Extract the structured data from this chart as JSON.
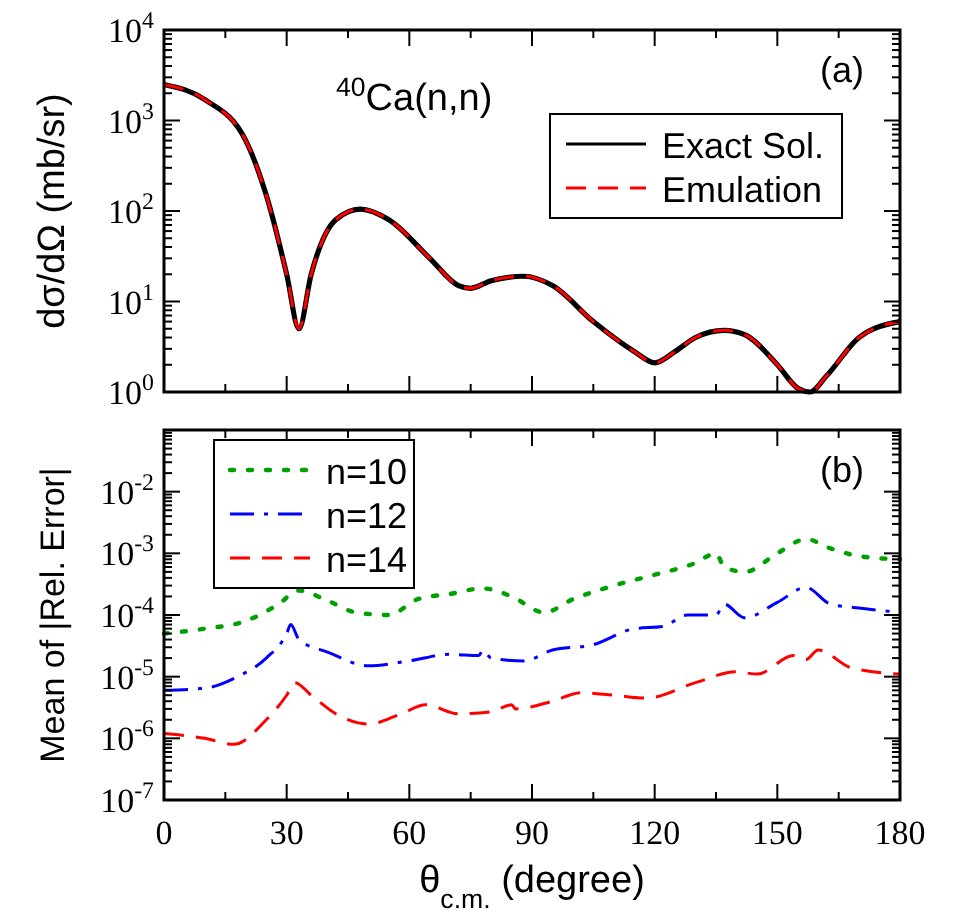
{
  "chart_data": [
    {
      "type": "line",
      "ylabel": "dσ/dΩ (mb/sr)",
      "log": "y",
      "xlim": [
        0,
        180
      ],
      "xticks": [
        0,
        30,
        60,
        90,
        120,
        150,
        180
      ],
      "ylim": [
        1,
        10000
      ],
      "yticks": [
        {
          "value": 1,
          "label": "10$^{0}$"
        },
        {
          "value": 10,
          "label": "10$^{1}$"
        },
        {
          "value": 100,
          "label": "10$^{2}$"
        },
        {
          "value": 1000,
          "label": "10$^{3}$"
        },
        {
          "value": 10000,
          "label": "10$^{4}$"
        }
      ],
      "tick_labels": "y",
      "grid": false,
      "legend": "top right",
      "annotations": [
        "$^{40}$Ca(n,n)",
        "(a)"
      ],
      "x": [
        0,
        10,
        20,
        25,
        30,
        33,
        36,
        42,
        48,
        55,
        65,
        72,
        75,
        80,
        88,
        95,
        105,
        115,
        120,
        125,
        130,
        137,
        142,
        150,
        155,
        158,
        162,
        170,
        180
      ],
      "series": [
        {
          "name": "Exact Sol.",
          "color": "#000000",
          "line_style": "solid",
          "values": [
            2500,
            1700,
            600,
            150,
            20,
            5,
            20,
            80,
            105,
            80,
            30,
            15,
            14,
            17,
            19,
            15,
            6,
            2.8,
            2.1,
            2.8,
            4,
            4.8,
            4.3,
            2,
            1.1,
            1,
            1.5,
            4,
            6
          ]
        },
        {
          "name": "Emulation",
          "color": "#ff0000",
          "line_style": "dashed",
          "values": [
            2500,
            1700,
            600,
            150,
            20,
            5,
            20,
            80,
            105,
            80,
            30,
            15,
            14,
            17,
            19,
            15,
            6,
            2.8,
            2.1,
            2.8,
            4,
            4.8,
            4.3,
            2,
            1.1,
            1,
            1.5,
            4,
            6
          ]
        }
      ]
    },
    {
      "type": "line",
      "ylabel": "Mean of |Rel. Error|",
      "xlabel": "θ$_{c.m.}$ (degree)",
      "log": "y",
      "xlim": [
        0,
        180
      ],
      "xticks": [
        0,
        30,
        60,
        90,
        120,
        150,
        180
      ],
      "ylim": [
        1e-07,
        0.1
      ],
      "yticks": [
        {
          "value": 1e-07,
          "label": "10$^{-7}$"
        },
        {
          "value": 1e-06,
          "label": "10$^{-6}$"
        },
        {
          "value": 1e-05,
          "label": "10$^{-5}$"
        },
        {
          "value": 0.0001,
          "label": "10$^{-4}$"
        },
        {
          "value": 0.001,
          "label": "10$^{-3}$"
        },
        {
          "value": 0.01,
          "label": "10$^{-2}$"
        },
        {
          "value": 0.1,
          "label": null
        }
      ],
      "grid": false,
      "legend": "top left",
      "annotations": [
        "(b)"
      ],
      "series": [
        {
          "name": "n=10",
          "color": "#00a000",
          "line_style": "dotted",
          "x": [
            0,
            10,
            20,
            28,
            33,
            40,
            47,
            55,
            62,
            70,
            78,
            85,
            93,
            100,
            110,
            120,
            130,
            135,
            137,
            142,
            150,
            157,
            163,
            170,
            180
          ],
          "values": [
            5e-05,
            6e-05,
            8e-05,
            0.00015,
            0.00025,
            0.00017,
            0.00011,
            0.0001,
            0.00018,
            0.00022,
            0.00027,
            0.0002,
            0.00011,
            0.00018,
            0.0003,
            0.00045,
            0.0007,
            0.001,
            0.0006,
            0.0005,
            0.001,
            0.0017,
            0.0012,
            0.0009,
            0.0008
          ]
        },
        {
          "name": "n=12",
          "color": "#0000ff",
          "line_style": "dashdot",
          "x": [
            0,
            10,
            18,
            25,
            30,
            31,
            33,
            40,
            50,
            60,
            70,
            77,
            78,
            80,
            88,
            95,
            105,
            115,
            122,
            128,
            135,
            137,
            142,
            150,
            157,
            163,
            170,
            180
          ],
          "values": [
            6e-06,
            6.5e-06,
            1e-05,
            2e-05,
            5e-05,
            7e-05,
            4e-05,
            2.5e-05,
            1.5e-05,
            1.8e-05,
            2.3e-05,
            2.2e-05,
            2.7e-05,
            2e-05,
            1.8e-05,
            2.7e-05,
            3.3e-05,
            6e-05,
            6.5e-05,
            0.0001,
            0.0001,
            0.00015,
            9e-05,
            0.00016,
            0.00028,
            0.00015,
            0.00013,
            0.00011
          ]
        },
        {
          "name": "n=14",
          "color": "#ff0000",
          "line_style": "dashed",
          "x": [
            0,
            10,
            17,
            25,
            30,
            32,
            36,
            42,
            50,
            58,
            64,
            72,
            80,
            85,
            86,
            95,
            102,
            110,
            118,
            130,
            140,
            145,
            154,
            157,
            160,
            168,
            180
          ],
          "values": [
            1.2e-06,
            1e-06,
            8e-07,
            2e-06,
            5e-06,
            8e-06,
            5e-06,
            2.5e-06,
            1.7e-06,
            2.5e-06,
            3.5e-06,
            2.5e-06,
            2.7e-06,
            3.5e-06,
            3e-06,
            4e-06,
            5.5e-06,
            5e-06,
            4.5e-06,
            8e-06,
            1.2e-05,
            1.1e-05,
            2.2e-05,
            1.9e-05,
            2.7e-05,
            1.4e-05,
            1.1e-05
          ]
        }
      ]
    }
  ]
}
